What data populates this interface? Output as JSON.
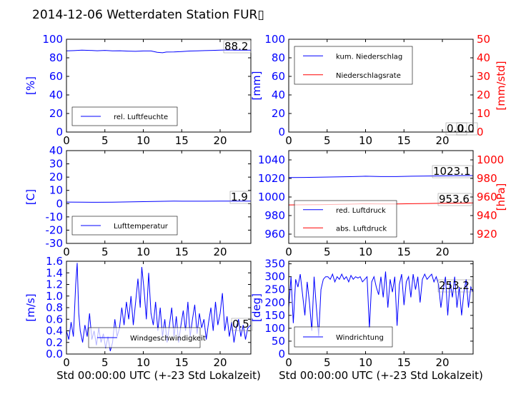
{
  "figure": {
    "title": "2014-12-06 Wetterdaten Station FUR▯"
  },
  "colors": {
    "primary": "#0000ff",
    "secondary": "#ff0000",
    "axis": "#000000",
    "background": "#ffffff"
  },
  "chart_data": [
    {
      "id": "humidity",
      "type": "line",
      "xlim": [
        0,
        24
      ],
      "ylim": [
        0,
        100
      ],
      "xticks": [
        0,
        5,
        10,
        15,
        20
      ],
      "yticks": [
        0,
        20,
        40,
        60,
        80,
        100
      ],
      "ylabel": "[%]",
      "xlabel": "",
      "legend": {
        "placement": "lower-left"
      },
      "series": [
        {
          "name": "rel. Luftfeuchte",
          "color": "#0000ff",
          "axis": "left",
          "x": [
            0,
            1,
            2,
            3,
            4,
            5,
            6,
            7,
            8,
            9,
            10,
            11,
            11.8,
            12.5,
            13,
            14,
            15,
            16,
            17,
            18,
            19,
            20,
            21,
            22,
            23,
            24
          ],
          "y": [
            87.5,
            87.8,
            88.2,
            88,
            87.6,
            88,
            87.5,
            87.6,
            87.2,
            87,
            87.4,
            87.4,
            86.0,
            85.5,
            86.2,
            86.3,
            86.8,
            87.3,
            87.5,
            87.8,
            88.0,
            88.3,
            88.5,
            88.2,
            88.3,
            88.2
          ]
        }
      ],
      "annotations": [
        {
          "text": "88.2",
          "series": 0
        }
      ]
    },
    {
      "id": "precip",
      "type": "line",
      "xlim": [
        0,
        24
      ],
      "ylim": [
        0,
        100
      ],
      "y2lim": [
        0,
        50
      ],
      "xticks": [
        0,
        5,
        10,
        15,
        20
      ],
      "yticks": [
        0,
        20,
        40,
        60,
        80,
        100
      ],
      "y2ticks": [
        0,
        10,
        20,
        30,
        40,
        50
      ],
      "ylabel": "[mm]",
      "y2label": "[mm/std]",
      "xlabel": "",
      "legend": {
        "placement": "upper-left"
      },
      "series": [
        {
          "name": "kum. Niederschlag",
          "color": "#0000ff",
          "axis": "left",
          "x": [
            0,
            24
          ],
          "y": [
            0,
            0
          ]
        },
        {
          "name": "Niederschlagsrate",
          "color": "#ff0000",
          "axis": "right",
          "x": [
            0,
            24
          ],
          "y": [
            0,
            0
          ]
        }
      ],
      "annotations": [
        {
          "text": "0.0",
          "series": 0
        },
        {
          "text": "0.0",
          "series": 1
        }
      ]
    },
    {
      "id": "temperature",
      "type": "line",
      "xlim": [
        0,
        24
      ],
      "ylim": [
        -30,
        40
      ],
      "xticks": [
        0,
        5,
        10,
        15,
        20
      ],
      "yticks": [
        -30,
        -20,
        -10,
        0,
        10,
        20,
        30,
        40
      ],
      "ylabel": "[C]",
      "xlabel": "",
      "legend": {
        "placement": "lower-left"
      },
      "series": [
        {
          "name": "Lufttemperatur",
          "color": "#0000ff",
          "axis": "left",
          "x": [
            0,
            2,
            4,
            6,
            8,
            10,
            12,
            14,
            16,
            18,
            20,
            22,
            24
          ],
          "y": [
            1.2,
            1.1,
            1.0,
            1.1,
            1.3,
            1.5,
            1.7,
            1.9,
            1.8,
            1.8,
            1.9,
            1.9,
            1.9
          ]
        }
      ],
      "annotations": [
        {
          "text": "1.9",
          "series": 0
        }
      ]
    },
    {
      "id": "pressure",
      "type": "line",
      "xlim": [
        0,
        24
      ],
      "ylim": [
        950,
        1050
      ],
      "y2lim": [
        910,
        1010
      ],
      "xticks": [
        0,
        5,
        10,
        15,
        20
      ],
      "yticks": [
        960,
        980,
        1000,
        1020,
        1040
      ],
      "y2ticks": [
        920,
        940,
        960,
        980,
        1000
      ],
      "ylabel": "",
      "y2label": "[hPa]",
      "xlabel": "",
      "legend": {
        "placement": "lower-left"
      },
      "series": [
        {
          "name": "red. Luftdruck",
          "color": "#0000ff",
          "axis": "left",
          "x": [
            0,
            2,
            4,
            6,
            8,
            10,
            12,
            14,
            16,
            18,
            20,
            22,
            24
          ],
          "y": [
            1021,
            1021.1,
            1021.3,
            1021.6,
            1021.9,
            1022.4,
            1022.0,
            1022.0,
            1022.4,
            1022.6,
            1022.8,
            1023.0,
            1023.1
          ]
        },
        {
          "name": "abs. Luftdruck",
          "color": "#ff0000",
          "axis": "right",
          "x": [
            0,
            2,
            4,
            6,
            8,
            10,
            12,
            14,
            16,
            18,
            20,
            22,
            24
          ],
          "y": [
            951.5,
            951.6,
            951.8,
            952.0,
            952.3,
            952.7,
            952.5,
            952.5,
            952.8,
            953.0,
            953.2,
            953.4,
            953.6
          ]
        }
      ],
      "annotations": [
        {
          "text": "1023.1",
          "series": 0
        },
        {
          "text": "953.6",
          "series": 1
        }
      ]
    },
    {
      "id": "windspeed",
      "type": "line",
      "xlim": [
        0,
        24
      ],
      "ylim": [
        0,
        1.6
      ],
      "xticks": [
        0,
        5,
        10,
        15,
        20
      ],
      "yticks": [
        0.0,
        0.2,
        0.4,
        0.6,
        0.8,
        1.0,
        1.2,
        1.4,
        1.6
      ],
      "ylabel": "[m/s]",
      "xlabel": "Std 00:00:00 UTC (+-23 Std Lokalzeit)",
      "legend": {
        "placement": "lower-center"
      },
      "series": [
        {
          "name": "Windgeschwindigkeit",
          "color": "#0000ff",
          "axis": "left",
          "x": [
            0,
            0.3,
            0.6,
            0.9,
            1.2,
            1.4,
            1.6,
            1.8,
            2.1,
            2.4,
            2.7,
            3.0,
            3.3,
            3.6,
            3.9,
            4.2,
            4.5,
            4.8,
            5.1,
            5.4,
            5.7,
            6.0,
            6.3,
            6.6,
            6.9,
            7.2,
            7.5,
            7.8,
            8.1,
            8.4,
            8.7,
            9.0,
            9.3,
            9.6,
            9.8,
            10.1,
            10.4,
            10.7,
            11.0,
            11.3,
            11.6,
            11.9,
            12.2,
            12.5,
            12.8,
            13.1,
            13.4,
            13.7,
            14.0,
            14.3,
            14.6,
            14.9,
            15.2,
            15.5,
            15.8,
            16.1,
            16.4,
            16.7,
            17.0,
            17.3,
            17.6,
            17.9,
            18.2,
            18.5,
            18.8,
            19.1,
            19.4,
            19.7,
            20.0,
            20.3,
            20.6,
            20.9,
            21.2,
            21.5,
            21.8,
            22.1,
            22.4,
            22.7,
            23.0,
            23.3,
            23.6,
            24.0
          ],
          "y": [
            0.4,
            0.25,
            0.55,
            0.3,
            1.2,
            1.57,
            0.7,
            0.4,
            0.2,
            0.5,
            0.3,
            0.7,
            0.25,
            0.4,
            0.15,
            0.45,
            0.2,
            0.35,
            0.1,
            0.3,
            0.05,
            0.2,
            0.6,
            0.3,
            0.45,
            0.8,
            0.5,
            0.9,
            0.6,
            1.0,
            0.5,
            0.9,
            1.3,
            0.8,
            1.5,
            1.1,
            0.6,
            1.4,
            0.7,
            0.5,
            0.9,
            0.4,
            0.8,
            0.3,
            0.6,
            0.2,
            0.5,
            0.8,
            0.3,
            0.65,
            0.2,
            0.5,
            0.75,
            0.4,
            0.9,
            0.3,
            0.6,
            0.85,
            0.35,
            0.7,
            0.45,
            0.6,
            0.25,
            0.55,
            0.8,
            0.4,
            0.9,
            0.5,
            0.7,
            1.05,
            0.4,
            0.65,
            0.3,
            0.55,
            0.2,
            0.45,
            0.6,
            0.3,
            0.5,
            0.25,
            0.45,
            0.5
          ]
        }
      ],
      "annotations": [
        {
          "text": "0.5",
          "series": 0
        }
      ]
    },
    {
      "id": "winddir",
      "type": "line",
      "xlim": [
        0,
        24
      ],
      "ylim": [
        0,
        360
      ],
      "xticks": [
        0,
        5,
        10,
        15,
        20
      ],
      "yticks": [
        0,
        50,
        100,
        150,
        200,
        250,
        300,
        350
      ],
      "ylabel": "[deg]",
      "xlabel": "Std 00:00:00 UTC (+-23 Std Lokalzeit)",
      "legend": {
        "placement": "lower-left"
      },
      "series": [
        {
          "name": "Windrichtung",
          "color": "#0000ff",
          "axis": "left",
          "x": [
            0,
            0.3,
            0.6,
            0.9,
            1.2,
            1.5,
            1.8,
            2.1,
            2.4,
            2.7,
            3.0,
            3.3,
            3.6,
            3.9,
            4.2,
            4.5,
            4.8,
            5.1,
            5.4,
            5.7,
            6.0,
            6.3,
            6.6,
            6.9,
            7.2,
            7.5,
            7.8,
            8.1,
            8.4,
            8.7,
            9.0,
            9.3,
            9.6,
            9.9,
            10.2,
            10.5,
            10.8,
            11.1,
            11.4,
            11.7,
            12.0,
            12.3,
            12.6,
            12.9,
            13.2,
            13.5,
            13.8,
            14.1,
            14.4,
            14.7,
            15.0,
            15.3,
            15.6,
            15.9,
            16.2,
            16.5,
            16.8,
            17.1,
            17.4,
            17.7,
            18.0,
            18.3,
            18.6,
            18.9,
            19.2,
            19.5,
            19.8,
            20.1,
            20.4,
            20.7,
            21.0,
            21.3,
            21.6,
            21.9,
            22.2,
            22.5,
            22.8,
            23.1,
            23.4,
            23.7,
            24.0
          ],
          "y": [
            180,
            300,
            120,
            290,
            260,
            310,
            230,
            150,
            280,
            200,
            90,
            300,
            180,
            70,
            250,
            290,
            300,
            300,
            290,
            310,
            280,
            300,
            290,
            310,
            290,
            300,
            280,
            305,
            290,
            300,
            295,
            300,
            280,
            290,
            300,
            100,
            280,
            300,
            260,
            230,
            300,
            220,
            320,
            180,
            290,
            240,
            300,
            110,
            270,
            310,
            190,
            280,
            300,
            220,
            310,
            250,
            300,
            200,
            290,
            310,
            290,
            300,
            310,
            280,
            300,
            270,
            180,
            250,
            300,
            150,
            280,
            220,
            300,
            180,
            260,
            150,
            240,
            290,
            180,
            260,
            240
          ]
        }
      ],
      "annotations": [
        {
          "text": "253.2",
          "series": 0
        }
      ]
    }
  ]
}
